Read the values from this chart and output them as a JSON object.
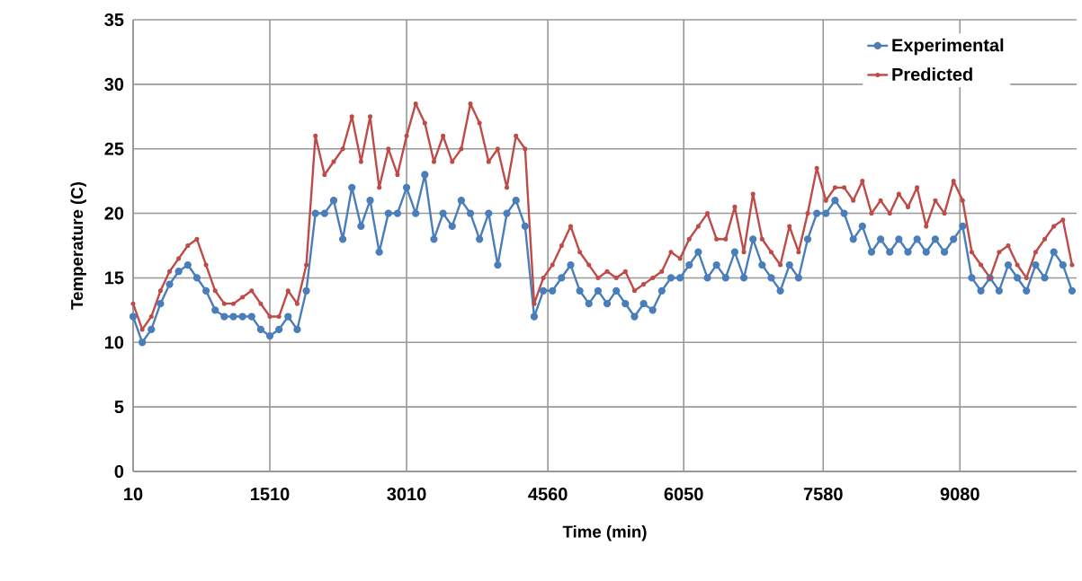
{
  "chart_data": {
    "type": "line",
    "xlabel": "Time (min)",
    "ylabel": "Temperature (C)",
    "xlim": [
      10,
      10360
    ],
    "xticks": [
      10,
      1510,
      3010,
      4560,
      6050,
      7580,
      9080
    ],
    "ylim": [
      0,
      35
    ],
    "yticks": [
      0,
      5,
      10,
      15,
      20,
      25,
      30,
      35
    ],
    "grid": true,
    "legend": "top right",
    "marker": "circle",
    "x": [
      10,
      110,
      210,
      310,
      410,
      510,
      610,
      710,
      810,
      910,
      1010,
      1110,
      1210,
      1310,
      1410,
      1510,
      1610,
      1710,
      1810,
      1910,
      2010,
      2110,
      2210,
      2310,
      2410,
      2510,
      2610,
      2710,
      2810,
      2910,
      3010,
      3110,
      3210,
      3310,
      3410,
      3510,
      3610,
      3710,
      3810,
      3910,
      4010,
      4110,
      4210,
      4310,
      4410,
      4510,
      4610,
      4710,
      4810,
      4910,
      5010,
      5110,
      5210,
      5310,
      5410,
      5510,
      5610,
      5710,
      5810,
      5910,
      6010,
      6110,
      6210,
      6310,
      6410,
      6510,
      6610,
      6710,
      6810,
      6910,
      7010,
      7110,
      7210,
      7310,
      7410,
      7510,
      7610,
      7710,
      7810,
      7910,
      8010,
      8110,
      8210,
      8310,
      8410,
      8510,
      8610,
      8710,
      8810,
      8910,
      9010,
      9110,
      9210,
      9310,
      9410,
      9510,
      9610,
      9710,
      9810,
      9910,
      10010,
      10110,
      10210,
      10310
    ],
    "series": [
      {
        "name": "Experimental",
        "color": "#4a7ebb",
        "values": [
          12,
          10,
          11,
          13,
          14.5,
          15.5,
          16,
          15,
          14,
          12.5,
          12,
          12,
          12,
          12,
          11,
          10.5,
          11,
          12,
          11,
          14,
          20,
          20,
          21,
          18,
          22,
          19,
          21,
          17,
          20,
          20,
          22,
          20,
          23,
          18,
          20,
          19,
          21,
          20,
          18,
          20,
          16,
          20,
          21,
          19,
          12,
          14,
          14,
          15,
          16,
          14,
          13,
          14,
          13,
          14,
          13,
          12,
          13,
          12.5,
          14,
          15,
          15,
          16,
          17,
          15,
          16,
          15,
          17,
          15,
          18,
          16,
          15,
          14,
          16,
          15,
          18,
          20,
          20,
          21,
          20,
          18,
          19,
          17,
          18,
          17,
          18,
          17,
          18,
          17,
          18,
          17,
          18,
          19,
          15,
          14,
          15,
          14,
          16,
          15,
          14,
          16,
          15,
          17,
          16,
          14
        ]
      },
      {
        "name": "Predicted",
        "color": "#be4b48",
        "values": [
          13,
          11,
          12,
          14,
          15.5,
          16.5,
          17.5,
          18,
          16,
          14,
          13,
          13,
          13.5,
          14,
          13,
          12,
          12,
          14,
          13,
          16,
          26,
          23,
          24,
          25,
          27.5,
          24,
          27.5,
          22,
          25,
          23,
          26,
          28.5,
          27,
          24,
          26,
          24,
          25,
          28.5,
          27,
          24,
          25,
          22,
          26,
          25,
          13,
          15,
          16,
          17.5,
          19,
          17,
          16,
          15,
          15.5,
          15,
          15.5,
          14,
          14.5,
          15,
          15.5,
          17,
          16.5,
          18,
          19,
          20,
          18,
          18,
          20.5,
          17,
          21.5,
          18,
          17,
          16,
          19,
          17,
          20,
          23.5,
          21,
          22,
          22,
          21,
          22.5,
          20,
          21,
          20,
          21.5,
          20.5,
          22,
          19,
          21,
          20,
          22.5,
          21,
          17,
          16,
          15,
          17,
          17.5,
          16,
          15,
          17,
          18,
          19,
          19.5,
          16
        ]
      }
    ]
  }
}
